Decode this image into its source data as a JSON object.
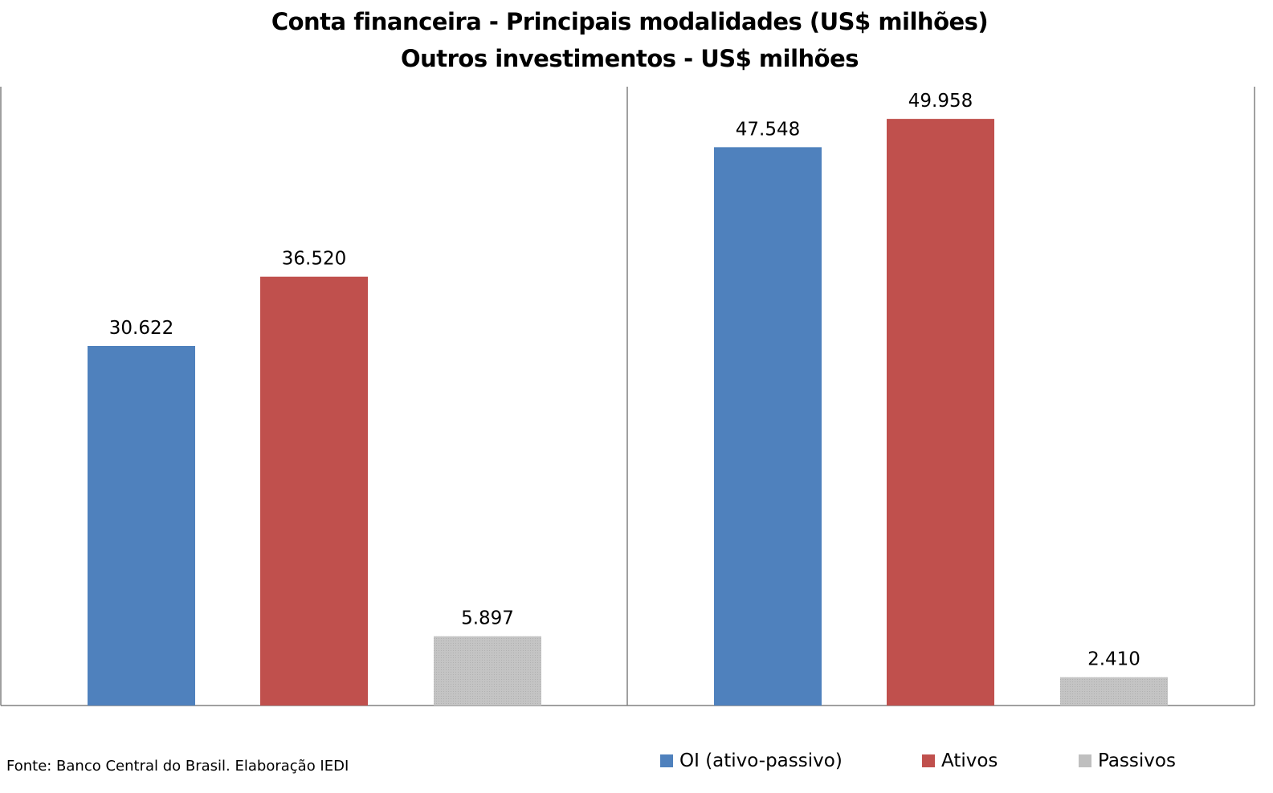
{
  "chart_data": {
    "type": "bar",
    "title": "Conta financeira - Principais modalidades (US$ milhões)",
    "subtitle": "Outros investimentos - US$ milhões",
    "panels": [
      {
        "series": [
          {
            "name": "OI (ativo-passivo)",
            "value": 30622,
            "label": "30.622"
          },
          {
            "name": "Ativos",
            "value": 36520,
            "label": "36.520"
          },
          {
            "name": "Passivos",
            "value": 5897,
            "label": "5.897"
          }
        ]
      },
      {
        "series": [
          {
            "name": "OI (ativo-passivo)",
            "value": 47548,
            "label": "47.548"
          },
          {
            "name": "Ativos",
            "value": 49958,
            "label": "49.958"
          },
          {
            "name": "Passivos",
            "value": 2410,
            "label": "2.410"
          }
        ]
      }
    ],
    "legend": [
      {
        "name": "OI (ativo-passivo)",
        "color": "#4F81BD"
      },
      {
        "name": "Ativos",
        "color": "#C0504D"
      },
      {
        "name": "Passivos",
        "color": "#BFBFBF"
      }
    ],
    "ylim": [
      0,
      52700
    ],
    "grid": false,
    "legend_position": "bottom-right"
  },
  "source": "Fonte: Banco Central do Brasil. Elaboração IEDI"
}
